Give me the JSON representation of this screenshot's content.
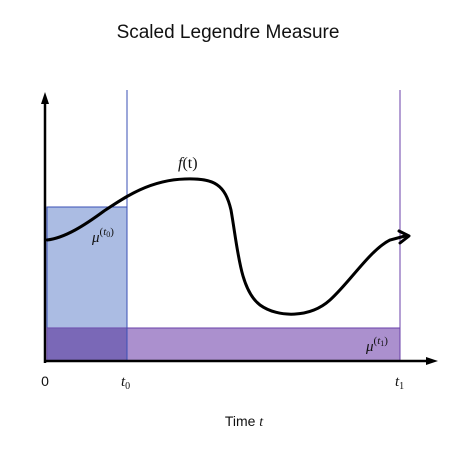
{
  "title": "Scaled Legendre Measure",
  "xlabel": {
    "text": "Time ",
    "var": "t"
  },
  "ticks": {
    "origin": "0",
    "t0": {
      "base": "t",
      "sub": "0"
    },
    "t1": {
      "base": "t",
      "sub": "1"
    }
  },
  "curve_label": {
    "fn": "f",
    "arg": "(t)"
  },
  "measure_t0": {
    "base": "μ",
    "sup_open": "(",
    "sup_var": "t",
    "sup_sub": "0",
    "sup_close": ")"
  },
  "measure_t1": {
    "base": "μ",
    "sup_open": "(",
    "sup_var": "t",
    "sup_sub": "1",
    "sup_close": ")"
  },
  "colors": {
    "axis": "#000000",
    "curve": "#000000",
    "blue_fill": "#8FA6D9",
    "blue_stroke": "#3A4FB5",
    "purple_fill": "#9C7CC6",
    "purple_stroke": "#6A3FA8",
    "overlap_fill": "#7E6CB8"
  }
}
